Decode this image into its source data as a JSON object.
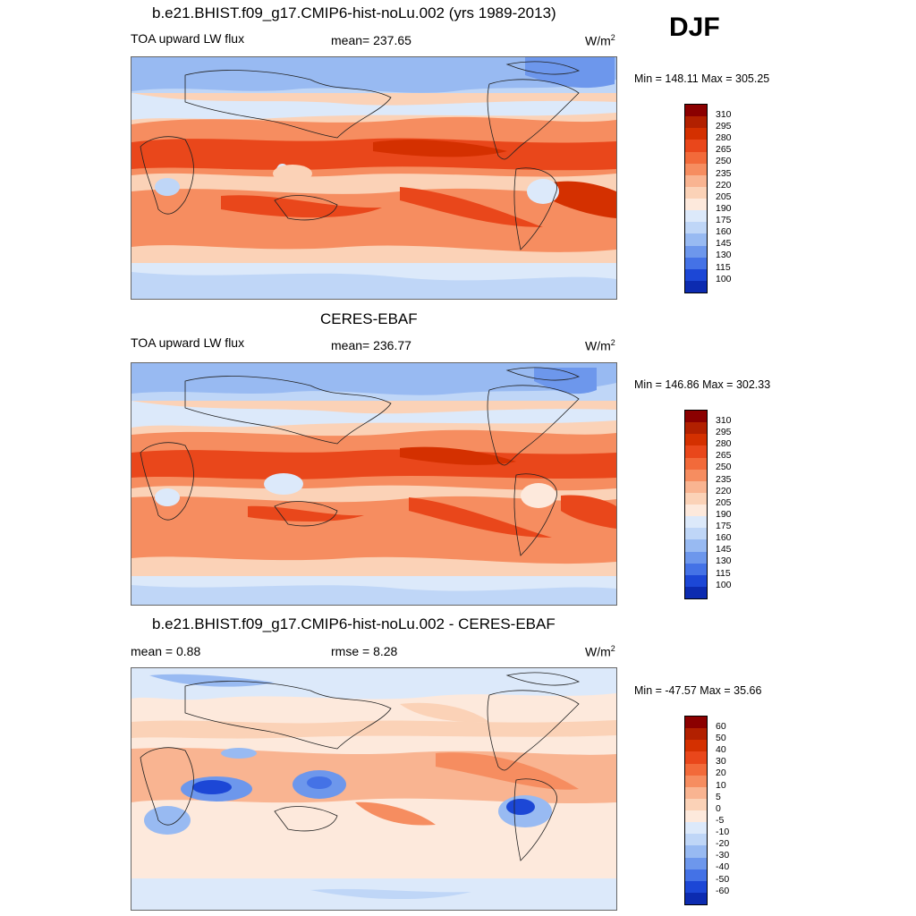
{
  "season": "DJF",
  "units": "W/m",
  "units_exponent": "2",
  "panels": [
    {
      "title": "b.e21.BHIST.f09_g17.CMIP6-hist-noLu.002 (yrs 1989-2013)",
      "left_label": "TOA upward LW flux",
      "center_label": "mean= 237.65",
      "minmax": "Min = 148.11 Max = 305.25"
    },
    {
      "title": "CERES-EBAF",
      "left_label": "TOA upward LW flux",
      "center_label": "mean= 236.77",
      "minmax": "Min = 146.86 Max = 302.33"
    },
    {
      "title": "b.e21.BHIST.f09_g17.CMIP6-hist-noLu.002 - CERES-EBAF",
      "left_label": "mean =   0.88",
      "center_label": "rmse =   8.28",
      "minmax": "Min = -47.57 Max =  35.66"
    }
  ],
  "colorbars": {
    "flux": {
      "labels": [
        "310",
        "295",
        "280",
        "265",
        "250",
        "235",
        "220",
        "205",
        "190",
        "175",
        "160",
        "145",
        "130",
        "115",
        "100"
      ],
      "colors": [
        "#8b0000",
        "#b22000",
        "#d43000",
        "#e9471b",
        "#f26a3a",
        "#f68d60",
        "#f9b491",
        "#fbd2b7",
        "#fde9dc",
        "#dce9fa",
        "#bfd6f7",
        "#98baf2",
        "#6d97ec",
        "#4472e6",
        "#1c47d6",
        "#0c2bb0"
      ]
    },
    "diff": {
      "labels": [
        "60",
        "50",
        "40",
        "30",
        "20",
        "10",
        "5",
        "0",
        "-5",
        "-10",
        "-20",
        "-30",
        "-40",
        "-50",
        "-60"
      ],
      "colors": [
        "#8b0000",
        "#b22000",
        "#d43000",
        "#e9471b",
        "#f26a3a",
        "#f68d60",
        "#f9b491",
        "#fbd2b7",
        "#fde9dc",
        "#dce9fa",
        "#bfd6f7",
        "#98baf2",
        "#6d97ec",
        "#4472e6",
        "#1c47d6",
        "#0c2bb0"
      ]
    }
  }
}
